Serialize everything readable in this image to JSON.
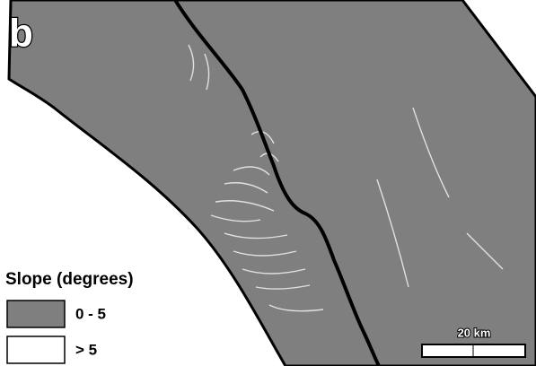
{
  "panel_label": "b",
  "legend": {
    "title": "Slope (degrees)",
    "items": [
      {
        "label": "0 - 5",
        "color": "#7f7f7f"
      },
      {
        "label": "> 5",
        "color": "#ffffff"
      }
    ]
  },
  "scale_bar": {
    "label": "20 km"
  }
}
